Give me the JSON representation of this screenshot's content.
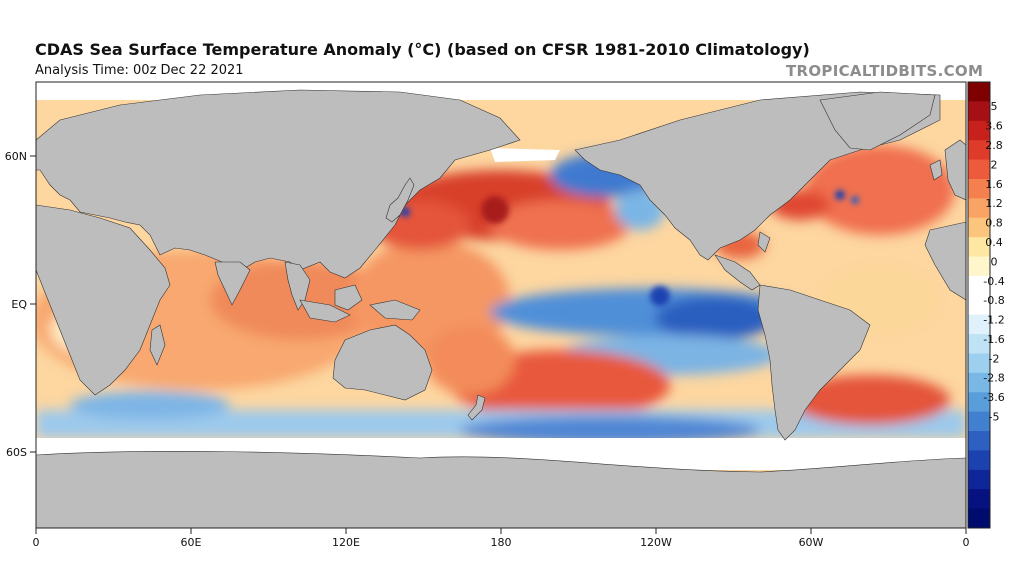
{
  "header": {
    "title": "CDAS Sea Surface Temperature Anomaly (°C) (based on CFSR 1981-2010 Climatology)",
    "subtitle": "Analysis Time: 00z Dec 22 2021",
    "credit": "TROPICALTIDBITS.COM"
  },
  "map": {
    "variable": "Sea surface temperature anomaly",
    "units": "°C",
    "projection": "equirectangular",
    "lon_range": [
      0,
      360
    ],
    "lat_labels": [
      "60N",
      "EQ",
      "60S"
    ],
    "lon_labels": [
      "0",
      "60E",
      "120E",
      "180",
      "120W",
      "60W",
      "0"
    ],
    "land_color": "#bdbdbd",
    "sea_ice_color": "#ffffff"
  },
  "colorbar": {
    "ticks": [
      "5",
      "3.6",
      "2.8",
      "2",
      "1.6",
      "1.2",
      "0.8",
      "0.4",
      "0",
      "-0.4",
      "-0.8",
      "-1.2",
      "-1.6",
      "-2",
      "-2.8",
      "-3.6",
      "-5"
    ],
    "colors": [
      "#7f0000",
      "#a50f15",
      "#c8201c",
      "#de3b2a",
      "#ee5a3c",
      "#f5804f",
      "#f9a464",
      "#fcc57e",
      "#fde7a3",
      "#fff6cc",
      "#ffffff",
      "#ffffff",
      "#dff1fa",
      "#bfe3f4",
      "#9cd0ee",
      "#79b8e5",
      "#5a9ddb",
      "#417fcf",
      "#2d60c1",
      "#1c42b0",
      "#0e2699",
      "#05127f",
      "#000b6e"
    ]
  }
}
